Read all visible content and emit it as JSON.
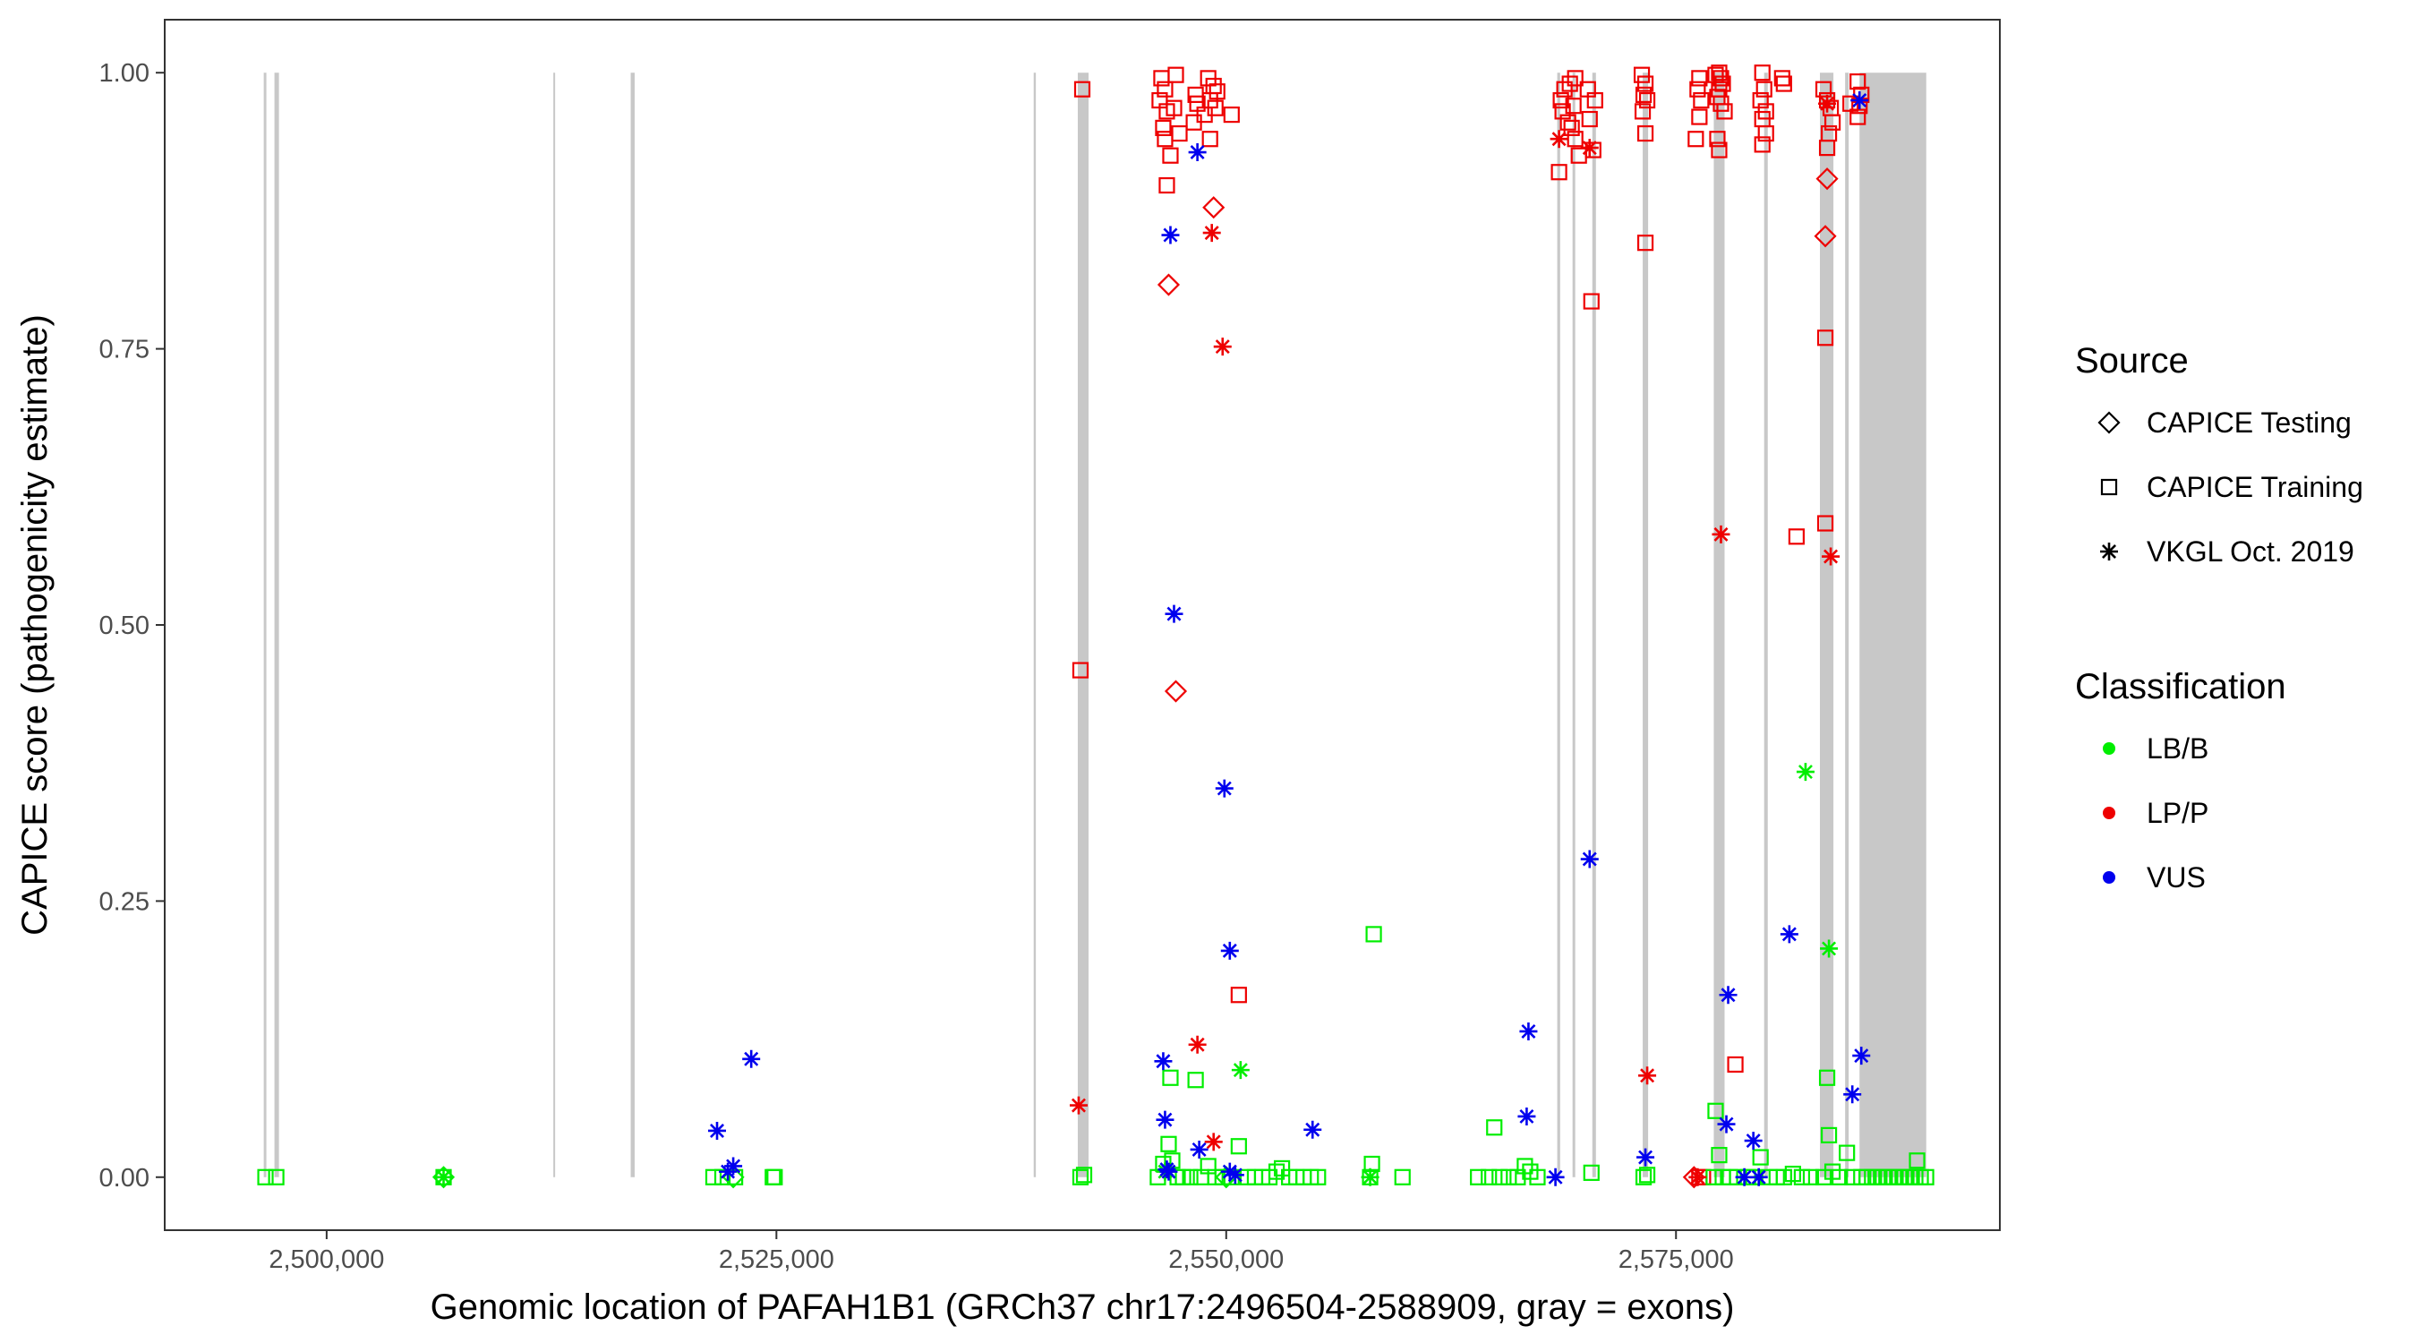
{
  "chart_data": {
    "type": "scatter",
    "xlabel": "Genomic location of PAFAH1B1 (GRCh37 chr17:2496504-2588909, gray = exons)",
    "ylabel": "CAPICE score (pathogenicity estimate)",
    "xlim": [
      2491000,
      2593000
    ],
    "ylim": [
      -0.048,
      1.048
    ],
    "x_ticks": [
      2500000,
      2525000,
      2550000,
      2575000
    ],
    "x_tick_labels": [
      "2,500,000",
      "2,525,000",
      "2,550,000",
      "2,575,000"
    ],
    "y_ticks": [
      0.0,
      0.25,
      0.5,
      0.75,
      1.0
    ],
    "y_tick_labels": [
      "0.00",
      "0.25",
      "0.50",
      "0.75",
      "1.00"
    ],
    "grid": false,
    "exons": [
      [
        2496504,
        2496650
      ],
      [
        2497100,
        2497350
      ],
      [
        2512600,
        2512700
      ],
      [
        2516900,
        2517120
      ],
      [
        2539300,
        2539420
      ],
      [
        2541750,
        2542350
      ],
      [
        2568400,
        2568560
      ],
      [
        2569250,
        2569400
      ],
      [
        2570350,
        2570550
      ],
      [
        2573150,
        2573450
      ],
      [
        2577100,
        2577700
      ],
      [
        2579900,
        2580100
      ],
      [
        2583000,
        2583750
      ],
      [
        2584400,
        2584600
      ],
      [
        2585200,
        2588909
      ]
    ],
    "legend": {
      "source_title": "Source",
      "source": [
        {
          "label": "CAPICE Testing",
          "shape": "diamond"
        },
        {
          "label": "CAPICE Training",
          "shape": "square"
        },
        {
          "label": "VKGL Oct. 2019",
          "shape": "asterisk"
        }
      ],
      "classification_title": "Classification",
      "classification": [
        {
          "label": "LB/B",
          "color": "#00ee00"
        },
        {
          "label": "LP/P",
          "color": "#ee0000"
        },
        {
          "label": "VUS",
          "color": "#0000ee"
        }
      ]
    },
    "series": [
      {
        "name": "CAPICE Training / LP/P",
        "shape": "square",
        "color": "#ee0000",
        "points": [
          [
            2542000,
            0.985
          ],
          [
            2541900,
            0.459
          ],
          [
            2546400,
            0.995
          ],
          [
            2546600,
            0.985
          ],
          [
            2547200,
            0.998
          ],
          [
            2546300,
            0.975
          ],
          [
            2546700,
            0.965
          ],
          [
            2547100,
            0.968
          ],
          [
            2546500,
            0.95
          ],
          [
            2547400,
            0.945
          ],
          [
            2546600,
            0.94
          ],
          [
            2546900,
            0.925
          ],
          [
            2546700,
            0.898
          ],
          [
            2548300,
            0.98
          ],
          [
            2548400,
            0.972
          ],
          [
            2549000,
            0.995
          ],
          [
            2549300,
            0.988
          ],
          [
            2549500,
            0.983
          ],
          [
            2549100,
            0.975
          ],
          [
            2549400,
            0.968
          ],
          [
            2548800,
            0.962
          ],
          [
            2548200,
            0.955
          ],
          [
            2549100,
            0.94
          ],
          [
            2550300,
            0.962
          ],
          [
            2550700,
            0.165
          ],
          [
            2568600,
            0.975
          ],
          [
            2568500,
            0.91
          ],
          [
            2568800,
            0.985
          ],
          [
            2569100,
            0.99
          ],
          [
            2569400,
            0.995
          ],
          [
            2569300,
            0.97
          ],
          [
            2569200,
            0.95
          ],
          [
            2569400,
            0.94
          ],
          [
            2569600,
            0.925
          ],
          [
            2570100,
            0.985
          ],
          [
            2570200,
            0.958
          ],
          [
            2570400,
            0.93
          ],
          [
            2570300,
            0.793
          ],
          [
            2570500,
            0.975
          ],
          [
            2568700,
            0.965
          ],
          [
            2569000,
            0.955
          ],
          [
            2573100,
            0.998
          ],
          [
            2573300,
            0.99
          ],
          [
            2573200,
            0.98
          ],
          [
            2573400,
            0.975
          ],
          [
            2573150,
            0.965
          ],
          [
            2573300,
            0.945
          ],
          [
            2573300,
            0.846
          ],
          [
            2576300,
            0.995
          ],
          [
            2576200,
            0.985
          ],
          [
            2576400,
            0.975
          ],
          [
            2576300,
            0.96
          ],
          [
            2576100,
            0.94
          ],
          [
            2577200,
            0.998
          ],
          [
            2577400,
            1.0
          ],
          [
            2577500,
            0.995
          ],
          [
            2577600,
            0.99
          ],
          [
            2577400,
            0.985
          ],
          [
            2577300,
            0.978
          ],
          [
            2577500,
            0.972
          ],
          [
            2577700,
            0.965
          ],
          [
            2577300,
            0.94
          ],
          [
            2577400,
            0.93
          ],
          [
            2578300,
            0.102
          ],
          [
            2579800,
            1.0
          ],
          [
            2579900,
            0.985
          ],
          [
            2579700,
            0.975
          ],
          [
            2580000,
            0.965
          ],
          [
            2579800,
            0.958
          ],
          [
            2580000,
            0.945
          ],
          [
            2579800,
            0.935
          ],
          [
            2580900,
            0.995
          ],
          [
            2581000,
            0.99
          ],
          [
            2583200,
            0.985
          ],
          [
            2583400,
            0.975
          ],
          [
            2583600,
            0.968
          ],
          [
            2583700,
            0.955
          ],
          [
            2583500,
            0.945
          ],
          [
            2583400,
            0.932
          ],
          [
            2583300,
            0.76
          ],
          [
            2583300,
            0.592
          ],
          [
            2581700,
            0.58
          ],
          [
            2585100,
            0.992
          ],
          [
            2585300,
            0.98
          ],
          [
            2585200,
            0.97
          ],
          [
            2585100,
            0.96
          ],
          [
            2584700,
            0.972
          ],
          [
            2576500,
            0.0
          ],
          [
            2576300,
            0.0
          ]
        ]
      },
      {
        "name": "CAPICE Training / LB/B",
        "shape": "square",
        "color": "#00ee00",
        "points": [
          [
            2496600,
            0.0
          ],
          [
            2497200,
            0.0
          ],
          [
            2506500,
            0.0
          ],
          [
            2521500,
            0.0
          ],
          [
            2522000,
            0.0
          ],
          [
            2522700,
            0.0
          ],
          [
            2524800,
            0.0
          ],
          [
            2524900,
            0.0
          ],
          [
            2541900,
            0.0
          ],
          [
            2542100,
            0.002
          ],
          [
            2546200,
            0.0
          ],
          [
            2546500,
            0.012
          ],
          [
            2546800,
            0.03
          ],
          [
            2546900,
            0.09
          ],
          [
            2547000,
            0.015
          ],
          [
            2547300,
            0.0
          ],
          [
            2547600,
            0.0
          ],
          [
            2548000,
            0.0
          ],
          [
            2548300,
            0.088
          ],
          [
            2548600,
            0.0
          ],
          [
            2549000,
            0.01
          ],
          [
            2549400,
            0.0
          ],
          [
            2549800,
            0.0
          ],
          [
            2550300,
            0.0
          ],
          [
            2550700,
            0.028
          ],
          [
            2551200,
            0.0
          ],
          [
            2551600,
            0.0
          ],
          [
            2552000,
            0.0
          ],
          [
            2552400,
            0.0
          ],
          [
            2552800,
            0.005
          ],
          [
            2553100,
            0.008
          ],
          [
            2553500,
            0.0
          ],
          [
            2553900,
            0.0
          ],
          [
            2554300,
            0.0
          ],
          [
            2554700,
            0.0
          ],
          [
            2555100,
            0.0
          ],
          [
            2558000,
            0.0
          ],
          [
            2558100,
            0.012
          ],
          [
            2558200,
            0.22
          ],
          [
            2559800,
            0.0
          ],
          [
            2564000,
            0.0
          ],
          [
            2564600,
            0.0
          ],
          [
            2564900,
            0.045
          ],
          [
            2565200,
            0.0
          ],
          [
            2565700,
            0.0
          ],
          [
            2566200,
            0.0
          ],
          [
            2566600,
            0.01
          ],
          [
            2566900,
            0.005
          ],
          [
            2567300,
            0.0
          ],
          [
            2570300,
            0.004
          ],
          [
            2573200,
            0.0
          ],
          [
            2573400,
            0.002
          ],
          [
            2577100,
            0.0
          ],
          [
            2577200,
            0.06
          ],
          [
            2577400,
            0.02
          ],
          [
            2577600,
            0.0
          ],
          [
            2578000,
            0.0
          ],
          [
            2578400,
            0.0
          ],
          [
            2579000,
            0.0
          ],
          [
            2579300,
            0.0
          ],
          [
            2579700,
            0.018
          ],
          [
            2580200,
            0.0
          ],
          [
            2580600,
            0.0
          ],
          [
            2581000,
            0.0
          ],
          [
            2581500,
            0.003
          ],
          [
            2582000,
            0.0
          ],
          [
            2582500,
            0.0
          ],
          [
            2583200,
            0.0
          ],
          [
            2583400,
            0.09
          ],
          [
            2583500,
            0.038
          ],
          [
            2583700,
            0.005
          ],
          [
            2584100,
            0.0
          ],
          [
            2584500,
            0.022
          ],
          [
            2584800,
            0.0
          ],
          [
            2585300,
            0.0
          ],
          [
            2585600,
            0.0
          ],
          [
            2585900,
            0.0
          ],
          [
            2586200,
            0.0
          ],
          [
            2586500,
            0.0
          ],
          [
            2586800,
            0.0
          ],
          [
            2587100,
            0.0
          ],
          [
            2587400,
            0.0
          ],
          [
            2587700,
            0.0
          ],
          [
            2588000,
            0.0
          ],
          [
            2588300,
            0.0
          ],
          [
            2588600,
            0.0
          ],
          [
            2588400,
            0.015
          ],
          [
            2588900,
            0.0
          ]
        ]
      },
      {
        "name": "CAPICE Testing / LP/P",
        "shape": "diamond",
        "color": "#ee0000",
        "points": [
          [
            2546800,
            0.808
          ],
          [
            2547200,
            0.44
          ],
          [
            2549300,
            0.878
          ],
          [
            2583400,
            0.904
          ],
          [
            2583300,
            0.852
          ],
          [
            2576000,
            0.0
          ]
        ]
      },
      {
        "name": "CAPICE Testing / LB/B",
        "shape": "diamond",
        "color": "#00ee00",
        "points": [
          [
            2506500,
            0.0
          ],
          [
            2522600,
            0.0
          ],
          [
            2550000,
            0.0
          ]
        ]
      },
      {
        "name": "VKGL Oct. 2019 / LP/P",
        "shape": "asterisk",
        "color": "#ee0000",
        "points": [
          [
            2541800,
            0.065
          ],
          [
            2548400,
            0.12
          ],
          [
            2549200,
            0.855
          ],
          [
            2549800,
            0.752
          ],
          [
            2549300,
            0.032
          ],
          [
            2568500,
            0.94
          ],
          [
            2570200,
            0.932
          ],
          [
            2573400,
            0.092
          ],
          [
            2577500,
            0.582
          ],
          [
            2583400,
            0.972
          ],
          [
            2583600,
            0.562
          ],
          [
            2576200,
            0.0
          ]
        ]
      },
      {
        "name": "VKGL Oct. 2019 / LB/B",
        "shape": "asterisk",
        "color": "#00ee00",
        "points": [
          [
            2506500,
            0.0
          ],
          [
            2550800,
            0.097
          ],
          [
            2558000,
            0.0
          ],
          [
            2582200,
            0.367
          ],
          [
            2583500,
            0.207
          ],
          [
            2546600,
            0.005
          ]
        ]
      },
      {
        "name": "VKGL Oct. 2019 / VUS",
        "shape": "asterisk",
        "color": "#0000ee",
        "points": [
          [
            2521700,
            0.042
          ],
          [
            2522300,
            0.005
          ],
          [
            2522600,
            0.01
          ],
          [
            2523600,
            0.107
          ],
          [
            2546500,
            0.105
          ],
          [
            2546600,
            0.052
          ],
          [
            2546700,
            0.007
          ],
          [
            2546800,
            0.005
          ],
          [
            2546900,
            0.853
          ],
          [
            2547100,
            0.51
          ],
          [
            2548400,
            0.928
          ],
          [
            2548500,
            0.025
          ],
          [
            2549900,
            0.352
          ],
          [
            2550200,
            0.205
          ],
          [
            2550200,
            0.005
          ],
          [
            2550500,
            0.002
          ],
          [
            2554800,
            0.043
          ],
          [
            2566800,
            0.132
          ],
          [
            2566700,
            0.055
          ],
          [
            2568300,
            0.0
          ],
          [
            2570200,
            0.288
          ],
          [
            2573300,
            0.018
          ],
          [
            2577900,
            0.165
          ],
          [
            2577800,
            0.048
          ],
          [
            2578800,
            0.0
          ],
          [
            2579300,
            0.033
          ],
          [
            2579600,
            0.0
          ],
          [
            2581300,
            0.22
          ],
          [
            2584800,
            0.075
          ],
          [
            2585300,
            0.11
          ],
          [
            2585200,
            0.975
          ]
        ]
      }
    ]
  }
}
